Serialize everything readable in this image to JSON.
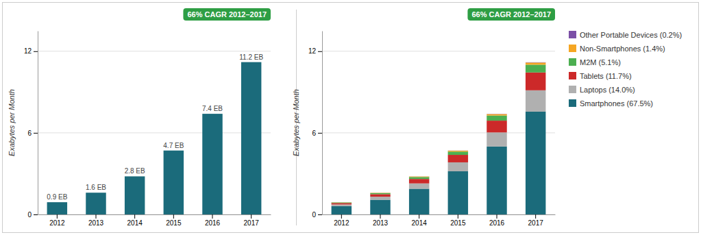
{
  "chart_data": [
    {
      "type": "bar",
      "categories": [
        "2012",
        "2013",
        "2014",
        "2015",
        "2016",
        "2017"
      ],
      "values": [
        0.9,
        1.6,
        2.8,
        4.7,
        7.4,
        11.2
      ],
      "value_labels": [
        "0.9 EB",
        "1.6 EB",
        "2.8 EB",
        "4.7 EB",
        "7.4 EB",
        "11.2 EB"
      ],
      "data_labels": true,
      "color": "#1b6b7b",
      "y_label": "Exabytes per Month",
      "ylim": [
        0,
        13.5
      ],
      "yticks": [
        0,
        6,
        12
      ],
      "grid": true,
      "annotations": [
        {
          "text": "66% CAGR 2012–2017",
          "color": "#2e9e44"
        }
      ]
    },
    {
      "type": "bar",
      "stacked": true,
      "categories": [
        "2012",
        "2013",
        "2014",
        "2015",
        "2016",
        "2017"
      ],
      "series": [
        {
          "name": "Smartphones (67.5%)",
          "color": "#1b6b7b",
          "values": [
            0.6075,
            1.08,
            1.89,
            3.1725,
            4.995,
            7.56
          ]
        },
        {
          "name": "Laptops (14.0%)",
          "color": "#b0b0b0",
          "values": [
            0.126,
            0.224,
            0.392,
            0.658,
            1.036,
            1.568
          ]
        },
        {
          "name": "Tablets (11.7%)",
          "color": "#cc2929",
          "values": [
            0.1053,
            0.1872,
            0.3276,
            0.5499,
            0.8658,
            1.3104
          ]
        },
        {
          "name": "M2M (5.1%)",
          "color": "#4caf50",
          "values": [
            0.0459,
            0.0816,
            0.1428,
            0.2397,
            0.3774,
            0.5712
          ]
        },
        {
          "name": "Non-Smartphones (1.4%)",
          "color": "#f5a623",
          "values": [
            0.0126,
            0.0224,
            0.0392,
            0.0658,
            0.1036,
            0.1568
          ]
        },
        {
          "name": "Other Portable Devices (0.2%)",
          "color": "#7b4fa6",
          "values": [
            0.0018,
            0.0032,
            0.0056,
            0.0094,
            0.0148,
            0.0224
          ]
        }
      ],
      "y_label": "Exabytes per Month",
      "ylim": [
        0,
        13.5
      ],
      "yticks": [
        0,
        6,
        12
      ],
      "grid": true,
      "legend": "right",
      "annotations": [
        {
          "text": "66% CAGR 2012–2017",
          "color": "#2e9e44"
        }
      ]
    }
  ]
}
